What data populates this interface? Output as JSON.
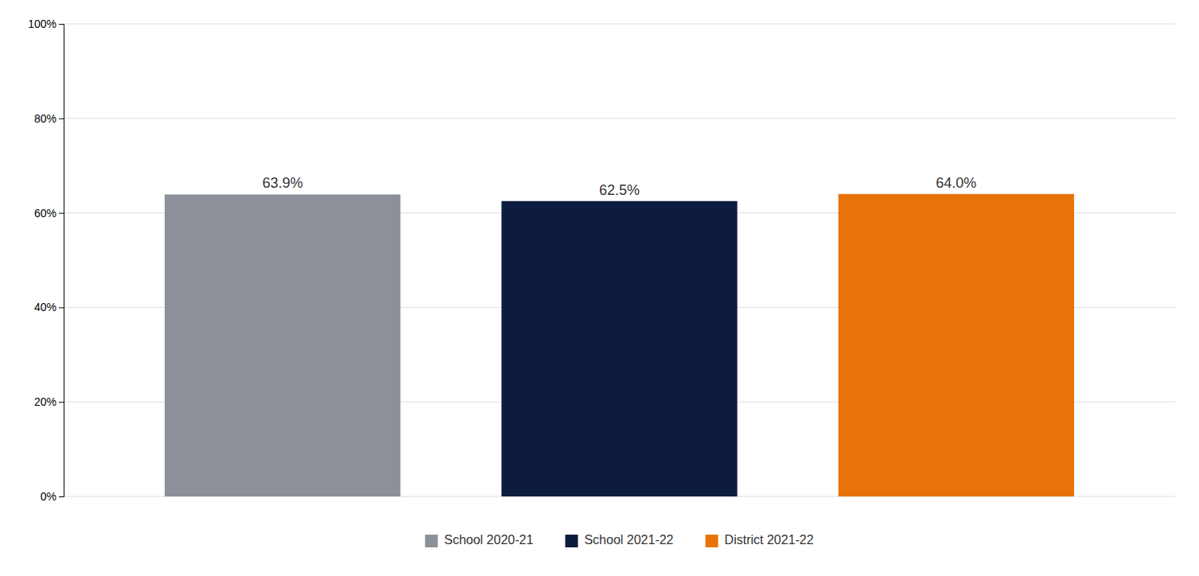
{
  "chart_data": {
    "type": "bar",
    "categories": [
      "School 2020-21",
      "School 2021-22",
      "District 2021-22"
    ],
    "values": [
      0.639,
      0.625,
      0.64
    ],
    "value_labels": [
      "63.9%",
      "62.5%",
      "64.0%"
    ],
    "colors": [
      "#8c9099",
      "#0d1b3e",
      "#e8730a"
    ],
    "ylim": [
      0,
      1.0
    ],
    "yticks": [
      {
        "value": 0,
        "label": "0%"
      },
      {
        "value": 0.2,
        "label": "20%"
      },
      {
        "value": 0.4,
        "label": "40%"
      },
      {
        "value": 0.6,
        "label": "60%"
      },
      {
        "value": 0.8,
        "label": "80%"
      },
      {
        "value": 1.0,
        "label": "100%"
      }
    ],
    "grid": true,
    "legend": "bottom",
    "data_labels": true,
    "tick_labels": "y"
  }
}
